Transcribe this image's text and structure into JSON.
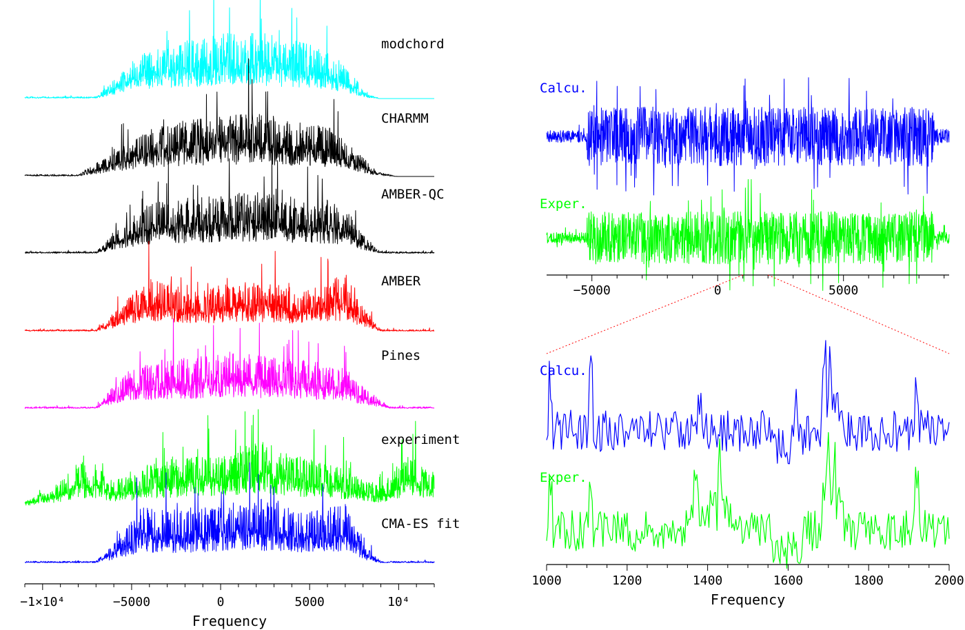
{
  "chart_data": [
    {
      "type": "line",
      "panel": "left",
      "xlabel": "Frequency",
      "xlim": [
        -11000,
        12000
      ],
      "ticks": [
        {
          "value": -10000,
          "label": "−1×10⁴"
        },
        {
          "value": -5000,
          "label": "−5000"
        },
        {
          "value": 0,
          "label": "0"
        },
        {
          "value": 5000,
          "label": "5000"
        },
        {
          "value": 10000,
          "label": "10⁴"
        }
      ],
      "series": [
        {
          "name": "modchord",
          "color": "#00ffff",
          "support": [
            -10000,
            9000
          ],
          "shape": [
            [
              -7000,
              0.02
            ],
            [
              -5500,
              0.28
            ],
            [
              -4000,
              0.52
            ],
            [
              -2000,
              0.6
            ],
            [
              0,
              0.68
            ],
            [
              2000,
              0.7
            ],
            [
              4000,
              0.62
            ],
            [
              6000,
              0.5
            ],
            [
              7200,
              0.3
            ],
            [
              8200,
              0.05
            ],
            [
              9000,
              0.0
            ]
          ]
        },
        {
          "name": "CHARMM",
          "color": "#000000",
          "support": [
            -11000,
            12000
          ],
          "shape": [
            [
              -8000,
              0.02
            ],
            [
              -6000,
              0.25
            ],
            [
              -4000,
              0.5
            ],
            [
              -2000,
              0.58
            ],
            [
              0,
              0.62
            ],
            [
              2000,
              0.66
            ],
            [
              4000,
              0.58
            ],
            [
              6000,
              0.52
            ],
            [
              7500,
              0.3
            ],
            [
              8800,
              0.05
            ],
            [
              10000,
              0.0
            ]
          ]
        },
        {
          "name": "AMBER-QC",
          "color": "#000000",
          "support": [
            -11000,
            12000
          ],
          "shape": [
            [
              -7000,
              0.02
            ],
            [
              -5500,
              0.3
            ],
            [
              -4000,
              0.52
            ],
            [
              -2000,
              0.58
            ],
            [
              0,
              0.62
            ],
            [
              2000,
              0.64
            ],
            [
              4000,
              0.58
            ],
            [
              6000,
              0.55
            ],
            [
              7000,
              0.48
            ],
            [
              8000,
              0.2
            ],
            [
              9000,
              0.02
            ]
          ]
        },
        {
          "name": "AMBER",
          "color": "#ff0000",
          "support": [
            -11000,
            12000
          ],
          "shape": [
            [
              -7000,
              0.02
            ],
            [
              -5500,
              0.28
            ],
            [
              -4200,
              0.55
            ],
            [
              -2500,
              0.5
            ],
            [
              -1000,
              0.42
            ],
            [
              1000,
              0.55
            ],
            [
              3000,
              0.5
            ],
            [
              4500,
              0.42
            ],
            [
              6000,
              0.5
            ],
            [
              7000,
              0.62
            ],
            [
              7800,
              0.3
            ],
            [
              9000,
              0.02
            ]
          ]
        },
        {
          "name": "Pines",
          "color": "#ff00ff",
          "support": [
            -11000,
            12000
          ],
          "shape": [
            [
              -7000,
              0.02
            ],
            [
              -6200,
              0.2
            ],
            [
              -5000,
              0.42
            ],
            [
              -3000,
              0.52
            ],
            [
              -1000,
              0.55
            ],
            [
              1000,
              0.6
            ],
            [
              3000,
              0.55
            ],
            [
              5000,
              0.5
            ],
            [
              7000,
              0.42
            ],
            [
              8200,
              0.2
            ],
            [
              9500,
              0.02
            ]
          ]
        },
        {
          "name": "experiment",
          "color": "#00ff00",
          "support": [
            -11000,
            12000
          ],
          "shape": [
            [
              -11000,
              0.05
            ],
            [
              -9000,
              0.25
            ],
            [
              -8000,
              0.48
            ],
            [
              -7000,
              0.45
            ],
            [
              -6200,
              0.28
            ],
            [
              -5000,
              0.32
            ],
            [
              -4000,
              0.45
            ],
            [
              -2000,
              0.5
            ],
            [
              0,
              0.55
            ],
            [
              2000,
              0.7
            ],
            [
              4000,
              0.55
            ],
            [
              6000,
              0.45
            ],
            [
              8000,
              0.3
            ],
            [
              9000,
              0.22
            ],
            [
              10500,
              0.55
            ],
            [
              12000,
              0.35
            ]
          ]
        },
        {
          "name": "CMA-ES fit",
          "color": "#0000ff",
          "support": [
            -11000,
            12000
          ],
          "shape": [
            [
              -7000,
              0.02
            ],
            [
              -5500,
              0.3
            ],
            [
              -4500,
              0.58
            ],
            [
              -2000,
              0.56
            ],
            [
              0,
              0.6
            ],
            [
              2000,
              0.68
            ],
            [
              4000,
              0.58
            ],
            [
              6000,
              0.58
            ],
            [
              7000,
              0.62
            ],
            [
              8000,
              0.2
            ],
            [
              9000,
              0.02
            ]
          ]
        }
      ]
    },
    {
      "type": "line",
      "panel": "top-right",
      "xlim": [
        -6800,
        9200
      ],
      "ticks": [
        {
          "value": -5000,
          "label": "−5000"
        },
        {
          "value": 0,
          "label": "0"
        },
        {
          "value": 5000,
          "label": "5000"
        }
      ],
      "zoom_region": [
        1000,
        2000
      ],
      "series": [
        {
          "name": "Calcu.",
          "color": "#0000ff"
        },
        {
          "name": "Exper.",
          "color": "#00ff00"
        }
      ]
    },
    {
      "type": "line",
      "panel": "bottom-right",
      "xlabel": "Frequency",
      "xlim": [
        1000,
        2000
      ],
      "ticks": [
        {
          "value": 1000,
          "label": "1000"
        },
        {
          "value": 1200,
          "label": "1200"
        },
        {
          "value": 1400,
          "label": "1400"
        },
        {
          "value": 1600,
          "label": "1600"
        },
        {
          "value": 1800,
          "label": "1800"
        },
        {
          "value": 2000,
          "label": "2000"
        }
      ],
      "series": [
        {
          "name": "Calcu.",
          "color": "#0000ff",
          "peaks": [
            1010,
            1110,
            1380,
            1620,
            1690,
            1705,
            1920
          ]
        },
        {
          "name": "Exper.",
          "color": "#00ff00",
          "peaks": [
            1010,
            1110,
            1370,
            1430,
            1700,
            1715,
            1920
          ]
        }
      ]
    }
  ]
}
